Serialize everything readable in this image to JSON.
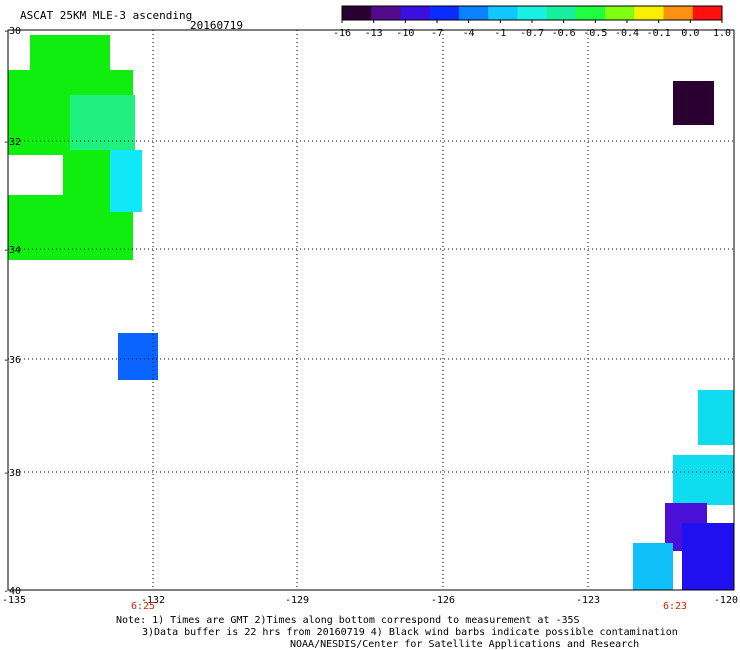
{
  "title": "ASCAT 25KM MLE-3 ascending",
  "date": "20160719",
  "colorbar": {
    "labels": [
      "-16",
      "-13",
      "-10",
      "-7",
      "-4",
      "-1",
      "-0.7",
      "-0.6",
      "-0.5",
      "-0.4",
      "-0.1",
      "0.0",
      "1.0"
    ],
    "colors": [
      "#2a0030",
      "#520a8c",
      "#3a10e0",
      "#0a2cff",
      "#0a82ff",
      "#10c8ff",
      "#18f0e0",
      "#18f0a0",
      "#20ff40",
      "#80ff10",
      "#f8f000",
      "#ff9010",
      "#ff1010"
    ]
  },
  "axes": {
    "lat_labels": [
      "-30",
      "-32",
      "-34",
      "-36",
      "-38",
      "-40"
    ],
    "lon_labels": [
      "-135",
      "-132",
      "-129",
      "-126",
      "-123",
      "-120"
    ]
  },
  "times": {
    "left": "6:25",
    "right": "6:23",
    "color": "#cc2200"
  },
  "data_blocks": [
    {
      "name": "green-swath-top",
      "color": "#10ee10"
    },
    {
      "name": "green-swath-teal",
      "color": "#20f080"
    },
    {
      "name": "cyan-swath-edge",
      "color": "#10e8f8"
    },
    {
      "name": "blue-isolated-cell",
      "color": "#0a64ff"
    },
    {
      "name": "dark-purple-cell",
      "color": "#2a0030"
    },
    {
      "name": "cyan-swath-right",
      "color": "#10dcf0"
    },
    {
      "name": "purple-cell-right",
      "color": "#4a10d8"
    },
    {
      "name": "blue-cell-right",
      "color": "#2010f0"
    },
    {
      "name": "light-blue-cell-right",
      "color": "#10c0f8"
    }
  ],
  "notes": [
    "Note: 1) Times are GMT 2)Times along bottom correspond to measurement at -35S",
    "3)Data buffer is 22 hrs from 20160719 4) Black wind barbs indicate possible contamination",
    "NOAA/NESDIS/Center for Satellite Applications and Research"
  ]
}
